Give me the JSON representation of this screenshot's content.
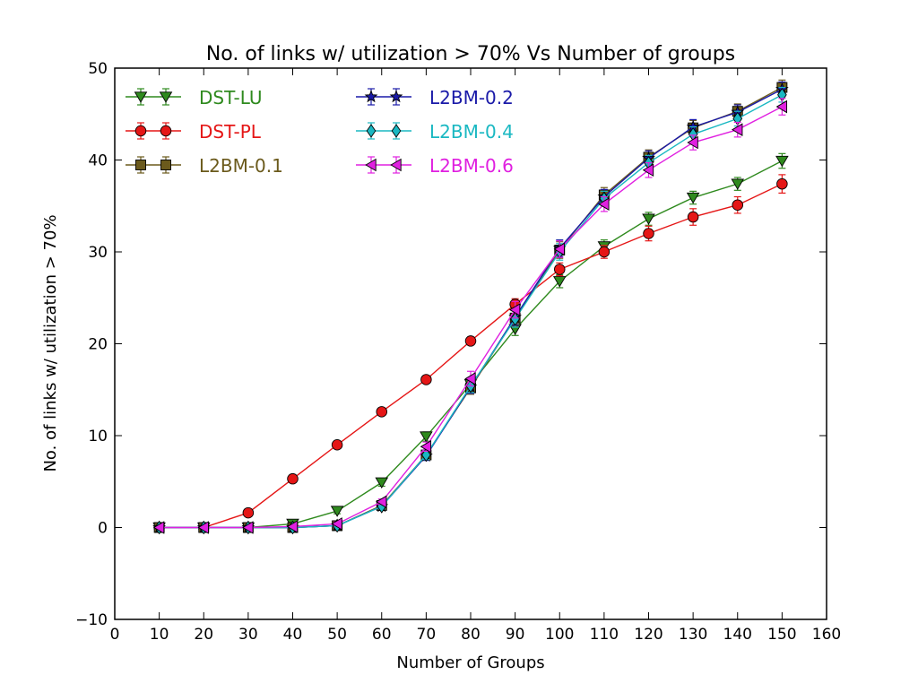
{
  "chart_data": {
    "type": "line",
    "title": "No. of links w/ utilization > 70% Vs Number of groups",
    "xlabel": "Number of Groups",
    "ylabel": "No. of links w/ utilization > 70%",
    "xlim": [
      0,
      160
    ],
    "ylim": [
      -10,
      50
    ],
    "xticks": [
      0,
      10,
      20,
      30,
      40,
      50,
      60,
      70,
      80,
      90,
      100,
      110,
      120,
      130,
      140,
      150,
      160
    ],
    "yticks": [
      -10,
      0,
      10,
      20,
      30,
      40,
      50
    ],
    "ytick_labels": [
      "−10",
      "0",
      "10",
      "20",
      "30",
      "40",
      "50"
    ],
    "grid": false,
    "legend_position": "top-left",
    "x": [
      10,
      20,
      30,
      40,
      50,
      60,
      70,
      80,
      90,
      100,
      110,
      120,
      130,
      140,
      150
    ],
    "series": [
      {
        "name": "DST-LU",
        "color": "#2f8a1e",
        "marker": "triangle-down",
        "values": [
          0,
          0,
          0,
          0.4,
          1.8,
          4.9,
          9.9,
          15.6,
          21.6,
          26.8,
          30.6,
          33.6,
          35.9,
          37.4,
          39.9
        ],
        "errors": [
          0.1,
          0.1,
          0.1,
          0.3,
          0.3,
          0.4,
          0.5,
          0.6,
          0.7,
          0.7,
          0.7,
          0.7,
          0.7,
          0.7,
          0.8
        ]
      },
      {
        "name": "DST-PL",
        "color": "#e51616",
        "marker": "circle",
        "values": [
          0,
          0,
          1.6,
          5.3,
          9.0,
          12.6,
          16.1,
          20.3,
          24.3,
          28.1,
          30.0,
          32.0,
          33.8,
          35.1,
          37.4
        ],
        "errors": [
          0.1,
          0.1,
          0.2,
          0.3,
          0.3,
          0.3,
          0.3,
          0.4,
          0.6,
          0.7,
          0.7,
          0.8,
          0.9,
          0.9,
          1.0
        ]
      },
      {
        "name": "L2BM-0.1",
        "color": "#6b5a1c",
        "marker": "square",
        "values": [
          0,
          0,
          0,
          0,
          0.2,
          2.4,
          7.9,
          15.2,
          22.8,
          30.2,
          36.2,
          40.3,
          43.5,
          45.3,
          47.9
        ],
        "errors": [
          0.1,
          0.1,
          0.1,
          0.1,
          0.2,
          0.3,
          0.5,
          0.7,
          0.9,
          0.9,
          0.8,
          0.8,
          0.8,
          0.8,
          0.8
        ]
      },
      {
        "name": "L2BM-0.2",
        "color": "#1a1aa8",
        "marker": "star",
        "values": [
          0,
          0,
          0,
          0,
          0.2,
          2.3,
          7.8,
          15.3,
          22.9,
          30.4,
          36.0,
          40.2,
          43.6,
          45.2,
          47.7
        ],
        "errors": [
          0.1,
          0.1,
          0.1,
          0.1,
          0.2,
          0.3,
          0.5,
          0.7,
          0.9,
          0.9,
          0.8,
          0.8,
          0.8,
          0.8,
          0.8
        ]
      },
      {
        "name": "L2BM-0.4",
        "color": "#1ab8c2",
        "marker": "diamond",
        "values": [
          0,
          0,
          0,
          0,
          0.2,
          2.3,
          7.9,
          15.4,
          22.7,
          30.0,
          35.8,
          39.7,
          42.8,
          44.5,
          47.1
        ],
        "errors": [
          0.1,
          0.1,
          0.1,
          0.1,
          0.2,
          0.3,
          0.5,
          0.7,
          0.9,
          0.9,
          0.8,
          0.8,
          0.8,
          0.8,
          0.8
        ]
      },
      {
        "name": "L2BM-0.6",
        "color": "#e020e0",
        "marker": "triangle-left",
        "values": [
          0,
          0,
          0,
          0.1,
          0.4,
          2.8,
          8.8,
          16.2,
          23.7,
          30.3,
          35.2,
          38.9,
          41.9,
          43.3,
          45.8
        ],
        "errors": [
          0.1,
          0.1,
          0.1,
          0.1,
          0.2,
          0.3,
          0.5,
          0.8,
          0.9,
          0.9,
          0.8,
          0.8,
          0.8,
          0.8,
          0.9
        ]
      }
    ]
  }
}
